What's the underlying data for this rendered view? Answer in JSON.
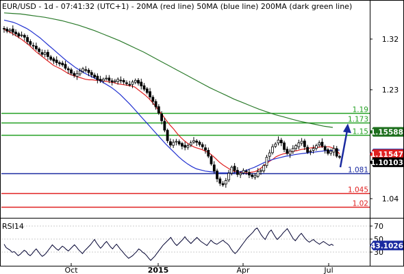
{
  "chart_data": [
    {
      "type": "candlestick",
      "title": "EUR/USD - 1d - 07:41:32 (UTC+1) - 20MA (red line) 50MA (blue line) 200MA (dark green line)",
      "ylim": [
        1.003,
        1.372
      ],
      "y_ticks": [
        "1.32",
        "1.23",
        "1.04"
      ],
      "x_ticks": [
        "Oct",
        "2015",
        "Apr",
        "Jul"
      ],
      "grid": false,
      "price": [
        1.342,
        1.338,
        1.34,
        1.336,
        1.333,
        1.329,
        1.331,
        1.327,
        1.319,
        1.314,
        1.312,
        1.306,
        1.301,
        1.296,
        1.299,
        1.292,
        1.287,
        1.284,
        1.281,
        1.279,
        1.277,
        1.271,
        1.268,
        1.262,
        1.258,
        1.261,
        1.266,
        1.27,
        1.267,
        1.263,
        1.259,
        1.255,
        1.25,
        1.248,
        1.251,
        1.253,
        1.249,
        1.246,
        1.248,
        1.251,
        1.249,
        1.246,
        1.243,
        1.241,
        1.246,
        1.249,
        1.244,
        1.239,
        1.233,
        1.227,
        1.219,
        1.211,
        1.201,
        1.19,
        1.176,
        1.159,
        1.14,
        1.132,
        1.137,
        1.139,
        1.134,
        1.13,
        1.128,
        1.131,
        1.136,
        1.14,
        1.137,
        1.133,
        1.129,
        1.123,
        1.112,
        1.098,
        1.085,
        1.071,
        1.063,
        1.06,
        1.068,
        1.081,
        1.092,
        1.086,
        1.079,
        1.081,
        1.086,
        1.084,
        1.078,
        1.075,
        1.077,
        1.084,
        1.086,
        1.095,
        1.11,
        1.118,
        1.129,
        1.134,
        1.141,
        1.136,
        1.124,
        1.117,
        1.121,
        1.126,
        1.131,
        1.136,
        1.139,
        1.129,
        1.119,
        1.121,
        1.126,
        1.131,
        1.136,
        1.13,
        1.123,
        1.117,
        1.121,
        1.126,
        1.112,
        1.11
      ],
      "series": [
        {
          "name": "20MA (red line)",
          "color": "#e02020",
          "values": [
            1.341,
            1.338,
            1.335,
            1.331,
            1.327,
            1.323,
            1.318,
            1.313,
            1.307,
            1.301,
            1.296,
            1.291,
            1.286,
            1.281,
            1.276,
            1.273,
            1.27,
            1.266,
            1.262,
            1.259,
            1.257,
            1.255,
            1.253,
            1.251,
            1.25,
            1.25,
            1.249,
            1.249,
            1.248,
            1.247,
            1.246,
            1.245,
            1.243,
            1.242,
            1.241,
            1.24,
            1.239,
            1.237,
            1.232,
            1.227,
            1.222,
            1.216,
            1.209,
            1.201,
            1.193,
            1.185,
            1.176,
            1.168,
            1.161,
            1.153,
            1.146,
            1.14,
            1.135,
            1.131,
            1.128,
            1.126,
            1.124,
            1.121,
            1.118,
            1.113,
            1.107,
            1.101,
            1.096,
            1.092,
            1.088,
            1.085,
            1.083,
            1.083,
            1.082,
            1.082,
            1.083,
            1.084,
            1.087,
            1.092,
            1.097,
            1.102,
            1.106,
            1.111,
            1.114,
            1.116,
            1.117,
            1.119,
            1.121,
            1.122,
            1.124,
            1.125,
            1.126,
            1.127,
            1.128,
            1.128,
            1.129,
            1.129,
            1.129,
            1.127,
            1.123,
            1.116
          ]
        },
        {
          "name": "50MA (blue line)",
          "color": "#2030d0",
          "values": [
            1.358,
            1.356,
            1.354,
            1.351,
            1.347,
            1.343,
            1.338,
            1.332,
            1.326,
            1.319,
            1.312,
            1.305,
            1.298,
            1.291,
            1.284,
            1.278,
            1.272,
            1.267,
            1.262,
            1.258,
            1.254,
            1.25,
            1.246,
            1.241,
            1.236,
            1.23,
            1.223,
            1.215,
            1.207,
            1.198,
            1.189,
            1.18,
            1.171,
            1.162,
            1.153,
            1.144,
            1.135,
            1.127,
            1.119,
            1.111,
            1.104,
            1.098,
            1.093,
            1.089,
            1.087,
            1.085,
            1.084,
            1.083,
            1.082,
            1.082,
            1.082,
            1.082,
            1.083,
            1.084,
            1.086,
            1.089,
            1.092,
            1.096,
            1.1,
            1.103,
            1.106,
            1.108,
            1.11,
            1.112,
            1.113,
            1.115,
            1.116,
            1.117,
            1.118,
            1.119,
            1.12,
            1.121,
            1.122,
            1.122,
            1.123,
            1.123
          ]
        },
        {
          "name": "200MA (dark green line)",
          "color": "#2a7a2a",
          "values": [
            1.371,
            1.37,
            1.369,
            1.367,
            1.365,
            1.363,
            1.36,
            1.357,
            1.353,
            1.349,
            1.344,
            1.339,
            1.333,
            1.327,
            1.321,
            1.314,
            1.307,
            1.3,
            1.292,
            1.284,
            1.276,
            1.268,
            1.26,
            1.252,
            1.244,
            1.236,
            1.229,
            1.222,
            1.215,
            1.209,
            1.203,
            1.197,
            1.192,
            1.187,
            1.183,
            1.179,
            1.175,
            1.172,
            1.169,
            1.166,
            1.164
          ]
        }
      ],
      "levels": [
        {
          "label": "1.19",
          "value": 1.19,
          "color": "#22a022"
        },
        {
          "label": "1.173",
          "value": 1.173,
          "color": "#22a022"
        },
        {
          "label": "1.15",
          "value": 1.15,
          "color": "#22a022"
        },
        {
          "label": "1.081",
          "value": 1.081,
          "color": "#1a2aa0"
        },
        {
          "label": "1.045",
          "value": 1.045,
          "color": "#e02020"
        },
        {
          "label": "1.02",
          "value": 1.02,
          "color": "#e02020"
        }
      ],
      "price_tags": [
        {
          "label": "1.15588",
          "value": 1.15588,
          "color": "#1d6f1d"
        },
        {
          "label": "1.11676",
          "value": 1.11676,
          "color": "#1a2aa0"
        },
        {
          "label": "1.11547",
          "value": 1.11547,
          "color": "#e02020"
        },
        {
          "label": "1.10103",
          "value": 1.10103,
          "color": "#000000"
        }
      ],
      "forecast_arrow": {
        "from": 1.092,
        "to": 1.166,
        "color": "#1a2aa0"
      }
    },
    {
      "type": "line",
      "title": "RSI14",
      "ylim": [
        15,
        80
      ],
      "y_ticks": [
        "70",
        "50",
        "30"
      ],
      "current_value": "43.1026",
      "series": [
        {
          "name": "RSI14",
          "color": "#000030",
          "values": [
            45,
            40,
            38,
            36,
            33,
            34,
            31,
            28,
            30,
            33,
            36,
            34,
            30,
            28,
            31,
            35,
            38,
            34,
            30,
            27,
            29,
            32,
            36,
            40,
            44,
            41,
            38,
            36,
            39,
            42,
            40,
            37,
            35,
            38,
            41,
            44,
            41,
            37,
            34,
            31,
            35,
            38,
            41,
            44,
            48,
            52,
            47,
            43,
            39,
            42,
            46,
            49,
            45,
            41,
            38,
            42,
            45,
            41,
            37,
            34,
            30,
            27,
            24,
            26,
            28,
            31,
            34,
            38,
            36,
            33,
            31,
            28,
            24,
            21,
            24,
            27,
            31,
            35,
            39,
            43,
            46,
            49,
            52,
            55,
            50,
            46,
            43,
            46,
            49,
            52,
            56,
            52,
            49,
            46,
            49,
            52,
            55,
            52,
            49,
            47,
            45,
            43,
            47,
            51,
            48,
            46,
            45,
            47,
            49,
            51,
            48,
            46,
            43,
            38,
            34,
            31,
            34,
            38,
            42,
            46,
            50,
            54,
            57,
            60,
            63,
            67,
            69,
            64,
            59,
            55,
            52,
            58,
            63,
            66,
            61,
            56,
            52,
            55,
            58,
            62,
            65,
            68,
            63,
            58,
            53,
            50,
            54,
            58,
            61,
            57,
            53,
            50,
            48,
            50,
            52,
            49,
            47,
            45,
            47,
            49,
            47,
            45,
            43,
            45,
            43
          ]
        }
      ]
    }
  ]
}
